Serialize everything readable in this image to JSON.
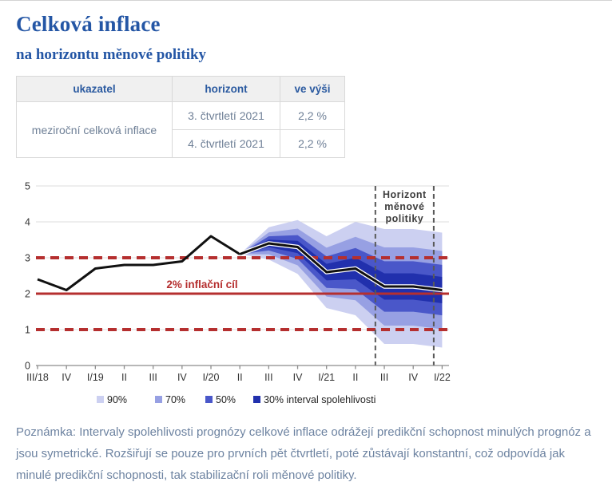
{
  "header": {
    "title": "Celková inflace",
    "subtitle": "na horizontu měnové politiky"
  },
  "table": {
    "headers": [
      "ukazatel",
      "horizont",
      "ve výši"
    ],
    "indicator": "meziroční celková inflace",
    "rows": [
      {
        "horizon": "3. čtvrtletí 2021",
        "value": "2,2 %"
      },
      {
        "horizon": "4. čtvrtletí 2021",
        "value": "2,2 %"
      }
    ]
  },
  "chart_data": {
    "type": "line",
    "title": "",
    "xlabel": "",
    "ylabel": "",
    "categories": [
      "III/18",
      "IV",
      "I/19",
      "II",
      "III",
      "IV",
      "I/20",
      "II",
      "III",
      "IV",
      "I/21",
      "II",
      "III",
      "IV",
      "I/22"
    ],
    "series": [
      {
        "name": "meziroční celková inflace",
        "values": [
          2.4,
          2.1,
          2.7,
          2.8,
          2.8,
          2.9,
          3.6,
          3.1,
          3.4,
          3.3,
          2.6,
          2.7,
          2.2,
          2.2,
          2.1
        ]
      }
    ],
    "forecast_start_index": 7,
    "fan_half_width_90pct": [
      0,
      0.45,
      0.75,
      1.0,
      1.3,
      1.6,
      1.6,
      1.6
    ],
    "band_ratios": {
      "b30": 0.23,
      "b50": 0.44,
      "b70": 0.68,
      "b90": 1.0
    },
    "ylim": [
      0,
      5
    ],
    "yticks": [
      0,
      1,
      2,
      3,
      4,
      5
    ],
    "grid": "horizontal",
    "target_line": {
      "value": 2,
      "label": "2% inflační cíl"
    },
    "dashed_levels": [
      1,
      3
    ],
    "horizon_marker": {
      "label_lines": [
        "Horizont",
        "měnové",
        "politiky"
      ],
      "x_index_positions": [
        11.69,
        13.71
      ]
    },
    "legend": {
      "position": "bottom",
      "items": [
        {
          "key": "band90",
          "label": "90%"
        },
        {
          "key": "band70",
          "label": "70%"
        },
        {
          "key": "band50",
          "label": "50%"
        },
        {
          "key": "band30",
          "label": "30% interval spolehlivosti"
        }
      ]
    },
    "colors": {
      "band90": "#ccd0f1",
      "band70": "#97a0e3",
      "band50": "#4a57c9",
      "band30": "#2130ad",
      "line": "#111111",
      "line_casing": "#ffffff",
      "red": "#b52f2f",
      "grid": "#dcdcdc",
      "axis": "#8c8c8c",
      "tick_text": "#333333",
      "horizon_line": "#595959",
      "horizon_text": "#3d3d3d",
      "legend_text": "#222222"
    }
  },
  "note": "Poznámka: Intervaly spolehlivosti prognózy celkové inflace odrážejí predikční schopnost minulých prognóz a jsou symetrické. Rozšiřují se pouze pro prvních pět čtvrtletí, poté zůstávají konstantní, což odpovídá jak minulé predikční schopnosti, tak stabilizační roli měnové politiky."
}
